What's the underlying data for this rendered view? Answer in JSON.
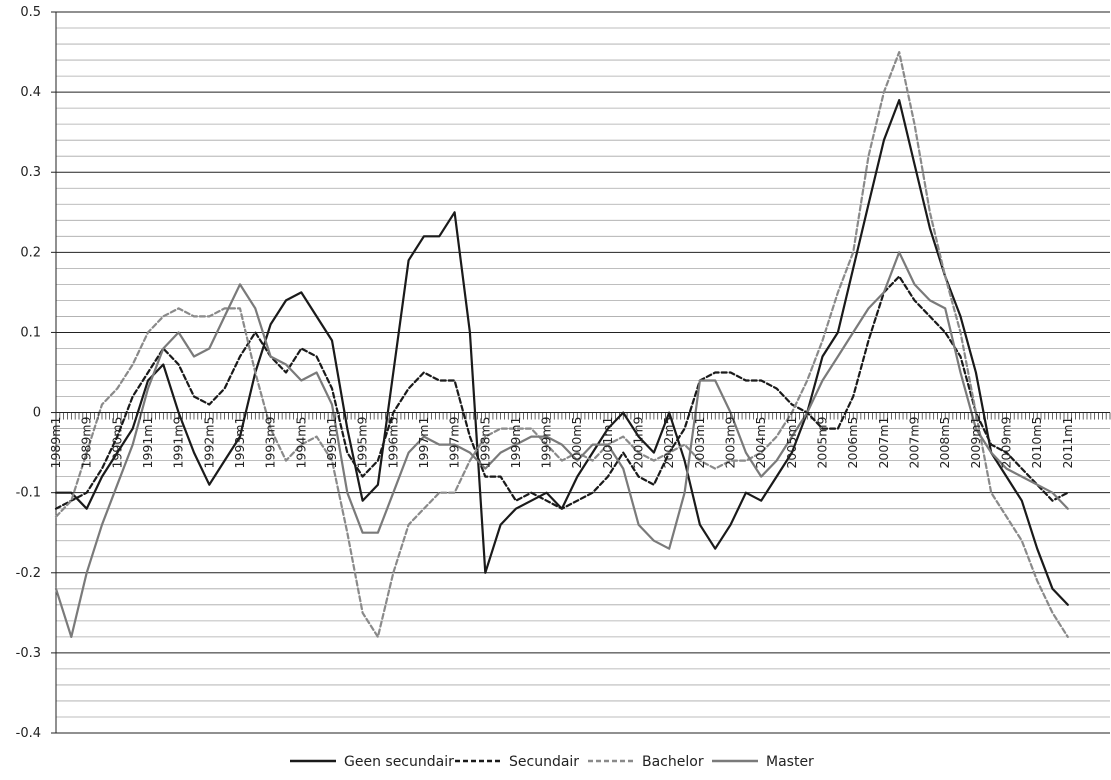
{
  "chart_data": {
    "type": "line",
    "title": "",
    "xlabel": "",
    "ylabel": "",
    "ylim": [
      -0.4,
      0.5
    ],
    "y_ticks": [
      0.5,
      0.4,
      0.3,
      0.2,
      0.1,
      0,
      -0.1,
      -0.2,
      -0.3,
      -0.4
    ],
    "y_tick_labels": [
      "0.5",
      "0.4",
      "0.3",
      "0.2",
      "0.1",
      "0",
      "-0.1",
      "-0.2",
      "-0.3",
      "-0.4"
    ],
    "x_tick_labels": [
      "1989m1",
      "1989m9",
      "1990m5",
      "1991m1",
      "1991m9",
      "1992m5",
      "1993m1",
      "1993m9",
      "1994m5",
      "1995m1",
      "1995m9",
      "1996m5",
      "1997m1",
      "1997m9",
      "1998m5",
      "1999m1",
      "1999m9",
      "2000m5",
      "2001m1",
      "2001m9",
      "2002m5",
      "2003m1",
      "2003m9",
      "2004m5",
      "2005m1",
      "2005m9",
      "2006m5",
      "2007m1",
      "2007m9",
      "2008m5",
      "2009m1",
      "2009m9",
      "2010m5",
      "2011m1"
    ],
    "grid": "major and minor horizontal",
    "legend_position": "bottom",
    "series": [
      {
        "name": "Geen secundair",
        "color": "#1a1a1a",
        "dash": "solid",
        "points": [
          [
            "1989m1",
            -0.1
          ],
          [
            "1989m5",
            -0.1
          ],
          [
            "1989m9",
            -0.12
          ],
          [
            "1990m1",
            -0.08
          ],
          [
            "1990m5",
            -0.05
          ],
          [
            "1990m9",
            -0.02
          ],
          [
            "1991m1",
            0.04
          ],
          [
            "1991m5",
            0.06
          ],
          [
            "1991m9",
            0.0
          ],
          [
            "1992m1",
            -0.05
          ],
          [
            "1992m5",
            -0.09
          ],
          [
            "1992m9",
            -0.06
          ],
          [
            "1993m1",
            -0.03
          ],
          [
            "1993m5",
            0.05
          ],
          [
            "1993m9",
            0.11
          ],
          [
            "1994m1",
            0.14
          ],
          [
            "1994m5",
            0.15
          ],
          [
            "1994m9",
            0.12
          ],
          [
            "1995m1",
            0.09
          ],
          [
            "1995m5",
            -0.02
          ],
          [
            "1995m9",
            -0.11
          ],
          [
            "1996m1",
            -0.09
          ],
          [
            "1996m5",
            0.05
          ],
          [
            "1996m9",
            0.19
          ],
          [
            "1997m1",
            0.22
          ],
          [
            "1997m5",
            0.22
          ],
          [
            "1997m9",
            0.25
          ],
          [
            "1998m1",
            0.1
          ],
          [
            "1998m5",
            -0.2
          ],
          [
            "1998m9",
            -0.14
          ],
          [
            "1999m1",
            -0.12
          ],
          [
            "1999m5",
            -0.11
          ],
          [
            "1999m9",
            -0.1
          ],
          [
            "2000m1",
            -0.12
          ],
          [
            "2000m5",
            -0.08
          ],
          [
            "2000m9",
            -0.05
          ],
          [
            "2001m1",
            -0.02
          ],
          [
            "2001m5",
            0.0
          ],
          [
            "2001m9",
            -0.03
          ],
          [
            "2002m1",
            -0.05
          ],
          [
            "2002m5",
            0.0
          ],
          [
            "2002m9",
            -0.06
          ],
          [
            "2003m1",
            -0.14
          ],
          [
            "2003m5",
            -0.17
          ],
          [
            "2003m9",
            -0.14
          ],
          [
            "2004m1",
            -0.1
          ],
          [
            "2004m5",
            -0.11
          ],
          [
            "2004m9",
            -0.08
          ],
          [
            "2005m1",
            -0.05
          ],
          [
            "2005m5",
            0.0
          ],
          [
            "2005m9",
            0.07
          ],
          [
            "2006m1",
            0.1
          ],
          [
            "2006m5",
            0.18
          ],
          [
            "2006m9",
            0.26
          ],
          [
            "2007m1",
            0.34
          ],
          [
            "2007m5",
            0.39
          ],
          [
            "2007m9",
            0.31
          ],
          [
            "2008m1",
            0.23
          ],
          [
            "2008m5",
            0.17
          ],
          [
            "2008m9",
            0.12
          ],
          [
            "2009m1",
            0.05
          ],
          [
            "2009m5",
            -0.05
          ],
          [
            "2009m9",
            -0.08
          ],
          [
            "2010m1",
            -0.11
          ],
          [
            "2010m5",
            -0.17
          ],
          [
            "2010m9",
            -0.22
          ],
          [
            "2011m1",
            -0.24
          ]
        ]
      },
      {
        "name": "Secundair",
        "color": "#1a1a1a",
        "dash": "dotted",
        "points": [
          [
            "1989m1",
            -0.12
          ],
          [
            "1989m5",
            -0.11
          ],
          [
            "1989m9",
            -0.1
          ],
          [
            "1990m1",
            -0.07
          ],
          [
            "1990m5",
            -0.03
          ],
          [
            "1990m9",
            0.02
          ],
          [
            "1991m1",
            0.05
          ],
          [
            "1991m5",
            0.08
          ],
          [
            "1991m9",
            0.06
          ],
          [
            "1992m1",
            0.02
          ],
          [
            "1992m5",
            0.01
          ],
          [
            "1992m9",
            0.03
          ],
          [
            "1993m1",
            0.07
          ],
          [
            "1993m5",
            0.1
          ],
          [
            "1993m9",
            0.07
          ],
          [
            "1994m1",
            0.05
          ],
          [
            "1994m5",
            0.08
          ],
          [
            "1994m9",
            0.07
          ],
          [
            "1995m1",
            0.03
          ],
          [
            "1995m5",
            -0.05
          ],
          [
            "1995m9",
            -0.08
          ],
          [
            "1996m1",
            -0.06
          ],
          [
            "1996m5",
            0.0
          ],
          [
            "1996m9",
            0.03
          ],
          [
            "1997m1",
            0.05
          ],
          [
            "1997m5",
            0.04
          ],
          [
            "1997m9",
            0.04
          ],
          [
            "1998m1",
            -0.03
          ],
          [
            "1998m5",
            -0.08
          ],
          [
            "1998m9",
            -0.08
          ],
          [
            "1999m1",
            -0.11
          ],
          [
            "1999m5",
            -0.1
          ],
          [
            "1999m9",
            -0.11
          ],
          [
            "2000m1",
            -0.12
          ],
          [
            "2000m5",
            -0.11
          ],
          [
            "2000m9",
            -0.1
          ],
          [
            "2001m1",
            -0.08
          ],
          [
            "2001m5",
            -0.05
          ],
          [
            "2001m9",
            -0.08
          ],
          [
            "2002m1",
            -0.09
          ],
          [
            "2002m5",
            -0.05
          ],
          [
            "2002m9",
            -0.02
          ],
          [
            "2003m1",
            0.04
          ],
          [
            "2003m5",
            0.05
          ],
          [
            "2003m9",
            0.05
          ],
          [
            "2004m1",
            0.04
          ],
          [
            "2004m5",
            0.04
          ],
          [
            "2004m9",
            0.03
          ],
          [
            "2005m1",
            0.01
          ],
          [
            "2005m5",
            0.0
          ],
          [
            "2005m9",
            -0.02
          ],
          [
            "2006m1",
            -0.02
          ],
          [
            "2006m5",
            0.02
          ],
          [
            "2006m9",
            0.09
          ],
          [
            "2007m1",
            0.15
          ],
          [
            "2007m5",
            0.17
          ],
          [
            "2007m9",
            0.14
          ],
          [
            "2008m1",
            0.12
          ],
          [
            "2008m5",
            0.1
          ],
          [
            "2008m9",
            0.07
          ],
          [
            "2009m1",
            0.0
          ],
          [
            "2009m5",
            -0.04
          ],
          [
            "2009m9",
            -0.05
          ],
          [
            "2010m1",
            -0.07
          ],
          [
            "2010m5",
            -0.09
          ],
          [
            "2010m9",
            -0.11
          ],
          [
            "2011m1",
            -0.1
          ]
        ]
      },
      {
        "name": "Bachelor",
        "color": "#8a8a8a",
        "dash": "dotted",
        "points": [
          [
            "1989m1",
            -0.13
          ],
          [
            "1989m5",
            -0.11
          ],
          [
            "1989m9",
            -0.05
          ],
          [
            "1990m1",
            0.01
          ],
          [
            "1990m5",
            0.03
          ],
          [
            "1990m9",
            0.06
          ],
          [
            "1991m1",
            0.1
          ],
          [
            "1991m5",
            0.12
          ],
          [
            "1991m9",
            0.13
          ],
          [
            "1992m1",
            0.12
          ],
          [
            "1992m5",
            0.12
          ],
          [
            "1992m9",
            0.13
          ],
          [
            "1993m1",
            0.13
          ],
          [
            "1993m5",
            0.05
          ],
          [
            "1993m9",
            -0.02
          ],
          [
            "1994m1",
            -0.06
          ],
          [
            "1994m5",
            -0.04
          ],
          [
            "1994m9",
            -0.03
          ],
          [
            "1995m1",
            -0.06
          ],
          [
            "1995m5",
            -0.15
          ],
          [
            "1995m9",
            -0.25
          ],
          [
            "1996m1",
            -0.28
          ],
          [
            "1996m5",
            -0.2
          ],
          [
            "1996m9",
            -0.14
          ],
          [
            "1997m1",
            -0.12
          ],
          [
            "1997m5",
            -0.1
          ],
          [
            "1997m9",
            -0.1
          ],
          [
            "1998m1",
            -0.06
          ],
          [
            "1998m5",
            -0.03
          ],
          [
            "1998m9",
            -0.02
          ],
          [
            "1999m1",
            -0.02
          ],
          [
            "1999m5",
            -0.02
          ],
          [
            "1999m9",
            -0.04
          ],
          [
            "2000m1",
            -0.06
          ],
          [
            "2000m5",
            -0.05
          ],
          [
            "2000m9",
            -0.06
          ],
          [
            "2001m1",
            -0.04
          ],
          [
            "2001m5",
            -0.03
          ],
          [
            "2001m9",
            -0.05
          ],
          [
            "2002m1",
            -0.06
          ],
          [
            "2002m5",
            -0.05
          ],
          [
            "2002m9",
            -0.04
          ],
          [
            "2003m1",
            -0.06
          ],
          [
            "2003m5",
            -0.07
          ],
          [
            "2003m9",
            -0.06
          ],
          [
            "2004m1",
            -0.06
          ],
          [
            "2004m5",
            -0.05
          ],
          [
            "2004m9",
            -0.03
          ],
          [
            "2005m1",
            0.0
          ],
          [
            "2005m5",
            0.04
          ],
          [
            "2005m9",
            0.09
          ],
          [
            "2006m1",
            0.15
          ],
          [
            "2006m5",
            0.2
          ],
          [
            "2006m9",
            0.32
          ],
          [
            "2007m1",
            0.4
          ],
          [
            "2007m5",
            0.45
          ],
          [
            "2007m9",
            0.36
          ],
          [
            "2008m1",
            0.25
          ],
          [
            "2008m5",
            0.17
          ],
          [
            "2008m9",
            0.1
          ],
          [
            "2009m1",
            0.0
          ],
          [
            "2009m5",
            -0.1
          ],
          [
            "2009m9",
            -0.13
          ],
          [
            "2010m1",
            -0.16
          ],
          [
            "2010m5",
            -0.21
          ],
          [
            "2010m9",
            -0.25
          ],
          [
            "2011m1",
            -0.28
          ]
        ]
      },
      {
        "name": "Master",
        "color": "#7a7a7a",
        "dash": "solid",
        "points": [
          [
            "1989m1",
            -0.22
          ],
          [
            "1989m5",
            -0.28
          ],
          [
            "1989m9",
            -0.2
          ],
          [
            "1990m1",
            -0.14
          ],
          [
            "1990m5",
            -0.09
          ],
          [
            "1990m9",
            -0.04
          ],
          [
            "1991m1",
            0.03
          ],
          [
            "1991m5",
            0.08
          ],
          [
            "1991m9",
            0.1
          ],
          [
            "1992m1",
            0.07
          ],
          [
            "1992m5",
            0.08
          ],
          [
            "1992m9",
            0.12
          ],
          [
            "1993m1",
            0.16
          ],
          [
            "1993m5",
            0.13
          ],
          [
            "1993m9",
            0.07
          ],
          [
            "1994m1",
            0.06
          ],
          [
            "1994m5",
            0.04
          ],
          [
            "1994m9",
            0.05
          ],
          [
            "1995m1",
            0.01
          ],
          [
            "1995m5",
            -0.1
          ],
          [
            "1995m9",
            -0.15
          ],
          [
            "1996m1",
            -0.15
          ],
          [
            "1996m5",
            -0.1
          ],
          [
            "1996m9",
            -0.05
          ],
          [
            "1997m1",
            -0.03
          ],
          [
            "1997m5",
            -0.04
          ],
          [
            "1997m9",
            -0.04
          ],
          [
            "1998m1",
            -0.05
          ],
          [
            "1998m5",
            -0.07
          ],
          [
            "1998m9",
            -0.05
          ],
          [
            "1999m1",
            -0.04
          ],
          [
            "1999m5",
            -0.03
          ],
          [
            "1999m9",
            -0.03
          ],
          [
            "2000m1",
            -0.04
          ],
          [
            "2000m5",
            -0.06
          ],
          [
            "2000m9",
            -0.04
          ],
          [
            "2001m1",
            -0.04
          ],
          [
            "2001m5",
            -0.07
          ],
          [
            "2001m9",
            -0.14
          ],
          [
            "2002m1",
            -0.16
          ],
          [
            "2002m5",
            -0.17
          ],
          [
            "2002m9",
            -0.1
          ],
          [
            "2003m1",
            0.04
          ],
          [
            "2003m5",
            0.04
          ],
          [
            "2003m9",
            0.0
          ],
          [
            "2004m1",
            -0.05
          ],
          [
            "2004m5",
            -0.08
          ],
          [
            "2004m9",
            -0.06
          ],
          [
            "2005m1",
            -0.03
          ],
          [
            "2005m5",
            0.0
          ],
          [
            "2005m9",
            0.04
          ],
          [
            "2006m1",
            0.07
          ],
          [
            "2006m5",
            0.1
          ],
          [
            "2006m9",
            0.13
          ],
          [
            "2007m1",
            0.15
          ],
          [
            "2007m5",
            0.2
          ],
          [
            "2007m9",
            0.16
          ],
          [
            "2008m1",
            0.14
          ],
          [
            "2008m5",
            0.13
          ],
          [
            "2008m9",
            0.05
          ],
          [
            "2009m1",
            -0.02
          ],
          [
            "2009m5",
            -0.05
          ],
          [
            "2009m9",
            -0.07
          ],
          [
            "2010m1",
            -0.08
          ],
          [
            "2010m5",
            -0.09
          ],
          [
            "2010m9",
            -0.1
          ],
          [
            "2011m1",
            -0.12
          ]
        ]
      }
    ]
  }
}
